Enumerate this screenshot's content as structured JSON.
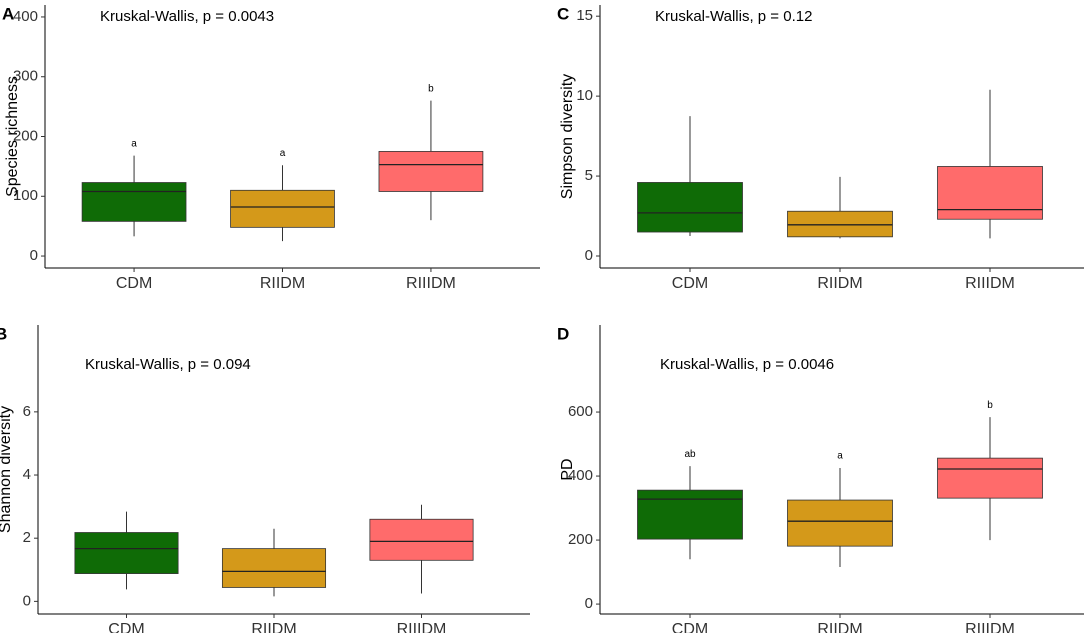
{
  "chart_data": [
    {
      "type": "box",
      "panel": "A",
      "annotation": "Kruskal-Wallis, p = 0.0043",
      "ylabel": "Species richness",
      "categories": [
        "CDM",
        "RIIDM",
        "RIIIDM"
      ],
      "colors": [
        "#0f6b06",
        "#d4991a",
        "#ff6b6b"
      ],
      "boxes": [
        {
          "min": 33,
          "q1": 58,
          "median": 108,
          "q3": 123,
          "max": 168
        },
        {
          "min": 25,
          "q1": 48,
          "median": 82,
          "q3": 110,
          "max": 152
        },
        {
          "min": 60,
          "q1": 108,
          "median": 153,
          "q3": 175,
          "max": 260
        }
      ],
      "letters": [
        "a",
        "a",
        "b"
      ],
      "ylim": [
        -20,
        420
      ],
      "yticks": [
        0,
        100,
        200,
        300,
        400
      ]
    },
    {
      "type": "box",
      "panel": "C",
      "annotation": "Kruskal-Wallis, p = 0.12",
      "ylabel": "Simpson diversity",
      "categories": [
        "CDM",
        "RIIDM",
        "RIIIDM"
      ],
      "colors": [
        "#0f6b06",
        "#d4991a",
        "#ff6b6b"
      ],
      "boxes": [
        {
          "min": 1.25,
          "q1": 1.5,
          "median": 2.7,
          "q3": 4.6,
          "max": 8.75
        },
        {
          "min": 1.1,
          "q1": 1.2,
          "median": 1.95,
          "q3": 2.8,
          "max": 4.95
        },
        {
          "min": 1.1,
          "q1": 2.3,
          "median": 2.9,
          "q3": 5.6,
          "max": 10.4
        }
      ],
      "ylim": [
        -0.75,
        15.7
      ],
      "yticks": [
        0,
        5,
        10,
        15
      ]
    },
    {
      "type": "box",
      "panel": "B",
      "annotation": "Kruskal-Wallis, p = 0.094",
      "ylabel": "Shannon diversity",
      "categories": [
        "CDM",
        "RIIDM",
        "RIIIDM"
      ],
      "colors": [
        "#0f6b06",
        "#d4991a",
        "#ff6b6b"
      ],
      "boxes": [
        {
          "min": 0.38,
          "q1": 0.88,
          "median": 1.67,
          "q3": 2.18,
          "max": 2.84
        },
        {
          "min": 0.16,
          "q1": 0.44,
          "median": 0.95,
          "q3": 1.67,
          "max": 2.3
        },
        {
          "min": 0.25,
          "q1": 1.3,
          "median": 1.9,
          "q3": 2.6,
          "max": 3.06
        }
      ],
      "ylim": [
        -0.4,
        8.75
      ],
      "yticks": [
        0,
        2,
        4,
        6
      ]
    },
    {
      "type": "box",
      "panel": "D",
      "annotation": "Kruskal-Wallis, p = 0.0046",
      "ylabel": "PD",
      "categories": [
        "CDM",
        "RIIDM",
        "RIIIDM"
      ],
      "colors": [
        "#0f6b06",
        "#d4991a",
        "#ff6b6b"
      ],
      "boxes": [
        {
          "min": 140,
          "q1": 203,
          "median": 328,
          "q3": 356,
          "max": 431
        },
        {
          "min": 116,
          "q1": 181,
          "median": 259,
          "q3": 325,
          "max": 425
        },
        {
          "min": 200,
          "q1": 331,
          "median": 422,
          "q3": 456,
          "max": 584
        }
      ],
      "letters": [
        "ab",
        "a",
        "b"
      ],
      "ylim": [
        -31,
        872
      ],
      "yticks": [
        0,
        200,
        400,
        600
      ]
    }
  ]
}
